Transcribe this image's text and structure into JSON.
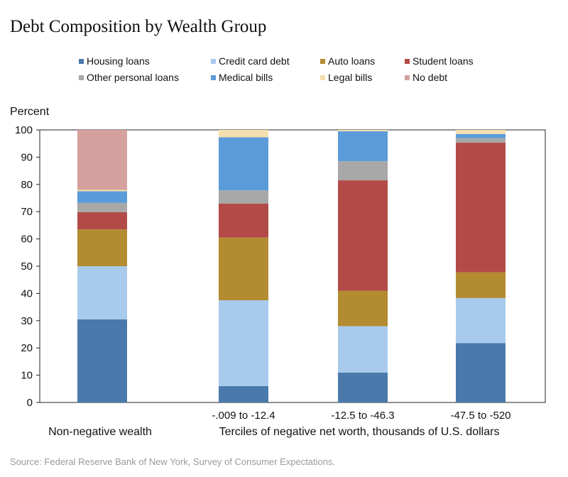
{
  "chart_data": {
    "type": "bar",
    "stacked": true,
    "title": "Debt Composition by Wealth Group",
    "ylabel": "Percent",
    "ylim": [
      0,
      100
    ],
    "yticks": [
      0,
      10,
      20,
      30,
      40,
      50,
      60,
      70,
      80,
      90,
      100
    ],
    "categories": [
      "",
      "-.009 to -12.4",
      "-12.5 to -46.3",
      "-47.5 to -520"
    ],
    "group_labels": [
      "Non-negative wealth",
      "Terciles of negative net worth, thousands of U.S. dollars"
    ],
    "legend_order": [
      "Housing loans",
      "Credit card debt",
      "Auto loans",
      "Student loans",
      "Other personal loans",
      "Medical bills",
      "Legal bills",
      "No debt"
    ],
    "series": [
      {
        "name": "Housing loans",
        "color": "#4a7aab",
        "values": [
          30.5,
          6,
          11,
          21.8
        ]
      },
      {
        "name": "Credit card debt",
        "color": "#a8cbed",
        "values": [
          19.5,
          31.5,
          17,
          16.5
        ]
      },
      {
        "name": "Auto loans",
        "color": "#b38b30",
        "values": [
          13.5,
          23,
          13,
          9.5
        ]
      },
      {
        "name": "Student loans",
        "color": "#b24b48",
        "values": [
          6.3,
          12.5,
          40.5,
          47.5
        ]
      },
      {
        "name": "Other personal loans",
        "color": "#a8a8a8",
        "values": [
          3.4,
          4.8,
          7,
          1.7
        ]
      },
      {
        "name": "Medical bills",
        "color": "#5b9bd9",
        "values": [
          4.3,
          19.5,
          11,
          1.5
        ]
      },
      {
        "name": "Legal bills",
        "color": "#f4dfae",
        "values": [
          0.5,
          2.7,
          0.5,
          1.5
        ]
      },
      {
        "name": "No debt",
        "color": "#d4a19e",
        "values": [
          22,
          0,
          0,
          0
        ]
      }
    ],
    "source": "Source: Federal Reserve Bank of New York, Survey of Consumer Expectations."
  }
}
